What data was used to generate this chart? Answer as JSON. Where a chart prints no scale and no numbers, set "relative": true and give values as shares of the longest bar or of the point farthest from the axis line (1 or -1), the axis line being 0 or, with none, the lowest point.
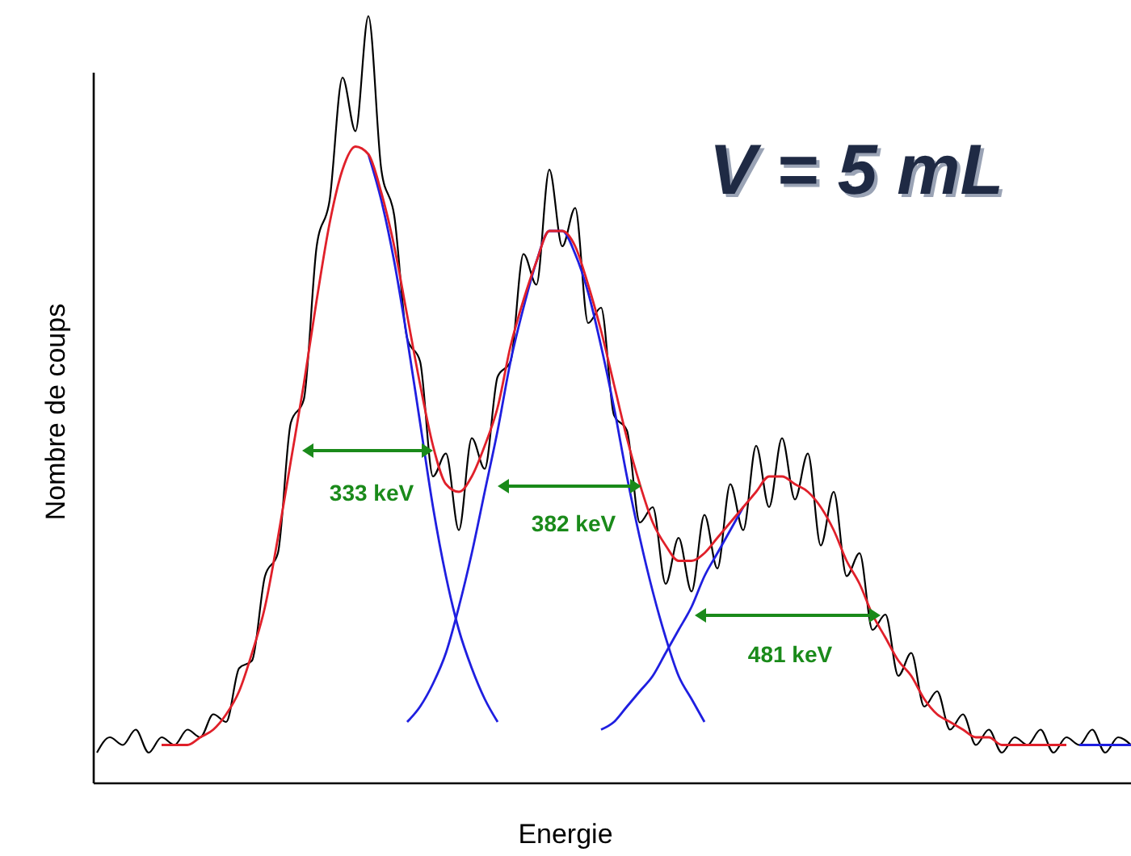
{
  "chart_data": {
    "type": "line",
    "relative": true,
    "xlabel": "Energie",
    "ylabel": "Nombre de coups",
    "categories": [
      null,
      null,
      null,
      null,
      null,
      null,
      null,
      null,
      null,
      null,
      null,
      null,
      null,
      null,
      null,
      null,
      null,
      null,
      null,
      null,
      null,
      null,
      null,
      null,
      null,
      null,
      null,
      null,
      null,
      null,
      null,
      null,
      null,
      null,
      null,
      null,
      null,
      null,
      null,
      null,
      null,
      null,
      null,
      null,
      null,
      null,
      null,
      null,
      null,
      null,
      null,
      null,
      null,
      null,
      null,
      null,
      null,
      null,
      null,
      null,
      null,
      null,
      null,
      null,
      null,
      null,
      null,
      null,
      null,
      null,
      null,
      null,
      null,
      null,
      null,
      null,
      null,
      null,
      null,
      null,
      null
    ],
    "annotations": [
      "V = 5 mL",
      "333 keV",
      "382 keV",
      "481 keV"
    ],
    "series": [
      {
        "color": "#000000",
        "values": [
          0.04,
          0.06,
          0.05,
          0.07,
          0.04,
          0.06,
          0.05,
          0.07,
          0.06,
          0.09,
          0.08,
          0.15,
          0.16,
          0.27,
          0.3,
          0.47,
          0.5,
          0.7,
          0.76,
          0.92,
          0.85,
          1.0,
          0.8,
          0.74,
          0.58,
          0.55,
          0.4,
          0.43,
          0.33,
          0.45,
          0.41,
          0.53,
          0.55,
          0.69,
          0.65,
          0.8,
          0.7,
          0.75,
          0.6,
          0.62,
          0.48,
          0.46,
          0.34,
          0.36,
          0.26,
          0.32,
          0.25,
          0.35,
          0.28,
          0.39,
          0.33,
          0.44,
          0.36,
          0.45,
          0.37,
          0.43,
          0.31,
          0.38,
          0.27,
          0.3,
          0.2,
          0.22,
          0.14,
          0.17,
          0.1,
          0.12,
          0.07,
          0.09,
          0.05,
          0.07,
          0.04,
          0.06,
          0.05,
          0.07,
          0.04,
          0.06,
          0.05,
          0.07,
          0.04,
          0.06,
          0.05
        ]
      },
      {
        "color": "#1f1fe0",
        "values": [
          null,
          null,
          null,
          null,
          null,
          null,
          null,
          null,
          null,
          null,
          null,
          null,
          null,
          null,
          null,
          null,
          null,
          null,
          null,
          null,
          null,
          0.82,
          0.76,
          0.68,
          0.58,
          0.47,
          0.36,
          0.27,
          0.2,
          0.15,
          0.11,
          0.08,
          null,
          null,
          null,
          null,
          null,
          null,
          null,
          null,
          null,
          null,
          null,
          null,
          null,
          null,
          null,
          null,
          null,
          null,
          null,
          null,
          null,
          null,
          null,
          null,
          null,
          null,
          null,
          null,
          null,
          null,
          null,
          null,
          null,
          null,
          null,
          null,
          null,
          null,
          null,
          null,
          null,
          null,
          null,
          null,
          null,
          null,
          null,
          null,
          null
        ]
      },
      {
        "color": "#1f1fe0",
        "values": [
          null,
          null,
          null,
          null,
          null,
          null,
          null,
          null,
          null,
          null,
          null,
          null,
          null,
          null,
          null,
          null,
          null,
          null,
          null,
          null,
          null,
          null,
          null,
          null,
          0.08,
          0.1,
          0.13,
          0.17,
          0.23,
          0.3,
          0.38,
          0.46,
          0.55,
          0.62,
          0.68,
          0.72,
          0.72,
          0.69,
          0.64,
          0.57,
          0.49,
          0.4,
          0.32,
          0.25,
          0.19,
          0.14,
          0.11,
          0.08,
          null,
          null,
          null,
          null,
          null,
          null,
          null,
          null,
          null,
          null,
          null,
          null,
          null,
          null,
          null,
          null,
          null,
          null,
          null,
          null,
          null,
          null,
          null,
          null,
          null,
          null,
          null,
          null,
          null,
          null,
          null,
          null,
          null
        ]
      },
      {
        "color": "#1f1fe0",
        "values": [
          null,
          null,
          null,
          null,
          null,
          null,
          null,
          null,
          null,
          null,
          null,
          null,
          null,
          null,
          null,
          null,
          null,
          null,
          null,
          null,
          null,
          null,
          null,
          null,
          null,
          null,
          null,
          null,
          null,
          null,
          null,
          null,
          null,
          null,
          null,
          null,
          null,
          null,
          null,
          0.07,
          0.08,
          0.1,
          0.12,
          0.14,
          0.17,
          0.2,
          0.23,
          0.27,
          0.3,
          0.33,
          0.36,
          null,
          null,
          null,
          null,
          null,
          null,
          null,
          null,
          null,
          null,
          null,
          null,
          null,
          null,
          null,
          null,
          null,
          null,
          null,
          null,
          null,
          null,
          null,
          null,
          null,
          0.05,
          0.05,
          0.05,
          0.05,
          0.05
        ]
      },
      {
        "color": "#e0202a",
        "values": [
          null,
          null,
          null,
          null,
          null,
          0.05,
          0.05,
          0.05,
          0.06,
          0.07,
          0.09,
          0.12,
          0.17,
          0.23,
          0.32,
          0.42,
          0.52,
          0.63,
          0.73,
          0.8,
          0.83,
          0.82,
          0.77,
          0.7,
          0.61,
          0.52,
          0.44,
          0.39,
          0.38,
          0.4,
          0.44,
          0.49,
          0.57,
          0.63,
          0.68,
          0.72,
          0.72,
          0.7,
          0.65,
          0.59,
          0.52,
          0.45,
          0.39,
          0.34,
          0.31,
          0.29,
          0.29,
          0.3,
          0.32,
          0.34,
          0.36,
          0.38,
          0.4,
          0.4,
          0.39,
          0.38,
          0.36,
          0.33,
          0.29,
          0.26,
          0.22,
          0.19,
          0.16,
          0.14,
          0.11,
          0.09,
          0.08,
          0.07,
          0.06,
          0.06,
          0.05,
          0.05,
          0.05,
          0.05,
          0.05,
          0.05,
          null,
          null,
          null,
          null,
          null
        ]
      }
    ]
  }
}
